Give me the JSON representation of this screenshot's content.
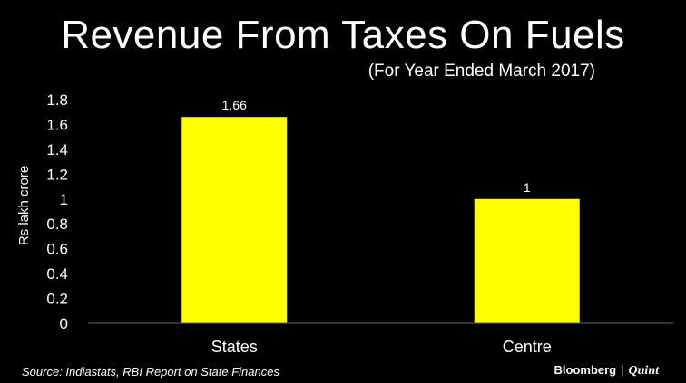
{
  "chart_data": {
    "type": "bar",
    "title": "Revenue From Taxes On Fuels",
    "subtitle": "(For Year Ended March 2017)",
    "ylabel": "Rs lakh crore",
    "xlabel": "",
    "categories": [
      "States",
      "Centre"
    ],
    "values": [
      1.66,
      1
    ],
    "data_labels": [
      "1.66",
      "1"
    ],
    "ylim": [
      0,
      1.8
    ],
    "yticks": [
      "0",
      "0.2",
      "0.4",
      "0.6",
      "0.8",
      "1",
      "1.2",
      "1.4",
      "1.6",
      "1.8"
    ],
    "grid": false,
    "bar_color": "#FFFF00"
  },
  "footer": {
    "source": "Source: Indiastats, RBI Report on State Finances",
    "brand_left": "Bloomberg",
    "brand_sep": "|",
    "brand_right": "Quint"
  }
}
